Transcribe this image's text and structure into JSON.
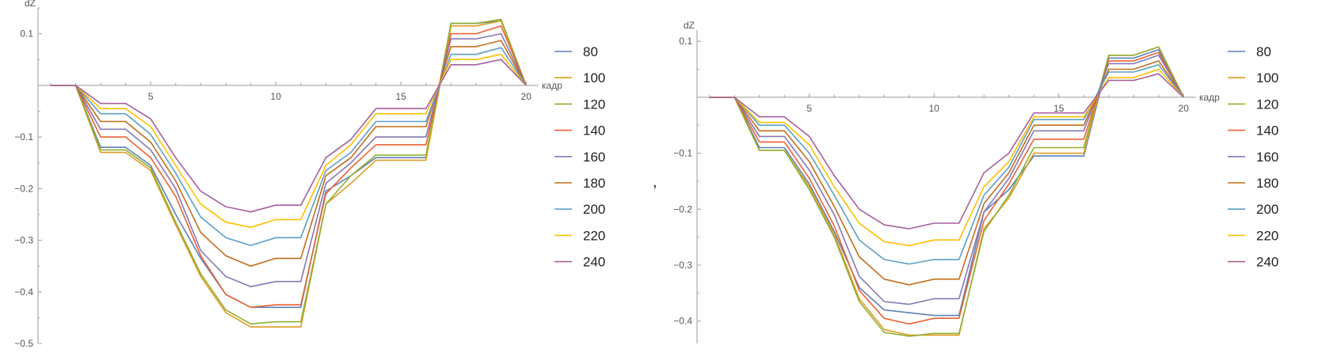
{
  "separator": ",",
  "chart_data": [
    {
      "type": "line",
      "xlabel": "кадр",
      "ylabel": "dZ",
      "xlim": [
        0.5,
        20.5
      ],
      "ylim": [
        -0.5,
        0.15
      ],
      "xticks": [
        5,
        10,
        15,
        20
      ],
      "yticks": [
        0.1,
        -0.1,
        -0.2,
        -0.3,
        -0.4,
        -0.5
      ],
      "x": [
        1,
        2,
        3,
        4,
        5,
        6,
        7,
        8,
        9,
        10,
        11,
        12,
        13,
        14,
        15,
        16,
        17,
        18,
        19,
        20
      ],
      "legend_position": "right",
      "series": [
        {
          "name": "80",
          "color": "#5e81b5",
          "values": [
            0,
            0,
            -0.12,
            -0.12,
            -0.155,
            -0.25,
            -0.335,
            -0.405,
            -0.43,
            -0.43,
            -0.43,
            -0.205,
            -0.175,
            -0.14,
            -0.14,
            -0.14,
            0.12,
            0.12,
            0.125,
            0
          ]
        },
        {
          "name": "100",
          "color": "#e19c24",
          "values": [
            0,
            0,
            -0.13,
            -0.13,
            -0.165,
            -0.27,
            -0.37,
            -0.44,
            -0.468,
            -0.468,
            -0.468,
            -0.23,
            -0.19,
            -0.145,
            -0.145,
            -0.145,
            0.115,
            0.115,
            0.125,
            0
          ]
        },
        {
          "name": "120",
          "color": "#8fb032",
          "values": [
            0,
            0,
            -0.125,
            -0.125,
            -0.16,
            -0.265,
            -0.365,
            -0.435,
            -0.462,
            -0.458,
            -0.458,
            -0.23,
            -0.175,
            -0.135,
            -0.135,
            -0.135,
            0.12,
            0.12,
            0.128,
            0
          ]
        },
        {
          "name": "140",
          "color": "#eb6235",
          "values": [
            0,
            0,
            -0.1,
            -0.1,
            -0.14,
            -0.215,
            -0.33,
            -0.405,
            -0.43,
            -0.425,
            -0.425,
            -0.21,
            -0.16,
            -0.115,
            -0.115,
            -0.115,
            0.1,
            0.1,
            0.115,
            0
          ]
        },
        {
          "name": "160",
          "color": "#8778b3",
          "values": [
            0,
            0,
            -0.085,
            -0.085,
            -0.125,
            -0.2,
            -0.32,
            -0.37,
            -0.39,
            -0.38,
            -0.38,
            -0.19,
            -0.15,
            -0.1,
            -0.1,
            -0.1,
            0.09,
            0.09,
            0.1,
            0
          ]
        },
        {
          "name": "180",
          "color": "#c56e1a",
          "values": [
            0,
            0,
            -0.07,
            -0.07,
            -0.11,
            -0.185,
            -0.285,
            -0.33,
            -0.35,
            -0.335,
            -0.335,
            -0.175,
            -0.14,
            -0.08,
            -0.08,
            -0.08,
            0.075,
            0.075,
            0.087,
            0
          ]
        },
        {
          "name": "200",
          "color": "#5d9ec7",
          "values": [
            0,
            0,
            -0.055,
            -0.055,
            -0.095,
            -0.17,
            -0.255,
            -0.295,
            -0.31,
            -0.295,
            -0.295,
            -0.165,
            -0.13,
            -0.07,
            -0.07,
            -0.07,
            0.06,
            0.06,
            0.073,
            0
          ]
        },
        {
          "name": "220",
          "color": "#ffbf00",
          "values": [
            0,
            0,
            -0.045,
            -0.045,
            -0.08,
            -0.155,
            -0.23,
            -0.265,
            -0.275,
            -0.26,
            -0.26,
            -0.155,
            -0.115,
            -0.055,
            -0.055,
            -0.055,
            0.05,
            0.05,
            0.06,
            0
          ]
        },
        {
          "name": "240",
          "color": "#a5609d",
          "values": [
            0,
            0,
            -0.035,
            -0.035,
            -0.065,
            -0.14,
            -0.205,
            -0.235,
            -0.245,
            -0.232,
            -0.232,
            -0.14,
            -0.105,
            -0.045,
            -0.045,
            -0.045,
            0.04,
            0.04,
            0.05,
            0
          ]
        }
      ]
    },
    {
      "type": "line",
      "xlabel": "кадр",
      "ylabel": "dZ",
      "xlim": [
        0.5,
        20.5
      ],
      "ylim": [
        -0.44,
        0.12
      ],
      "xticks": [
        5,
        10,
        15,
        20
      ],
      "yticks": [
        0.1,
        -0.1,
        -0.2,
        -0.3,
        -0.4
      ],
      "x": [
        1,
        2,
        3,
        4,
        5,
        6,
        7,
        8,
        9,
        10,
        11,
        12,
        13,
        14,
        15,
        16,
        17,
        18,
        19,
        20
      ],
      "legend_position": "right",
      "series": [
        {
          "name": "80",
          "color": "#5e81b5",
          "values": [
            0,
            0,
            -0.09,
            -0.09,
            -0.155,
            -0.24,
            -0.34,
            -0.38,
            -0.385,
            -0.39,
            -0.39,
            -0.205,
            -0.165,
            -0.105,
            -0.105,
            -0.105,
            0.07,
            0.07,
            0.085,
            0
          ]
        },
        {
          "name": "100",
          "color": "#e19c24",
          "values": [
            0,
            0,
            -0.095,
            -0.095,
            -0.16,
            -0.245,
            -0.36,
            -0.415,
            -0.425,
            -0.425,
            -0.425,
            -0.235,
            -0.18,
            -0.1,
            -0.1,
            -0.1,
            0.075,
            0.075,
            0.09,
            0
          ]
        },
        {
          "name": "120",
          "color": "#8fb032",
          "values": [
            0,
            0,
            -0.095,
            -0.095,
            -0.165,
            -0.25,
            -0.365,
            -0.42,
            -0.427,
            -0.422,
            -0.422,
            -0.24,
            -0.175,
            -0.09,
            -0.09,
            -0.09,
            0.075,
            0.075,
            0.09,
            0
          ]
        },
        {
          "name": "140",
          "color": "#eb6235",
          "values": [
            0,
            0,
            -0.08,
            -0.08,
            -0.145,
            -0.23,
            -0.345,
            -0.395,
            -0.405,
            -0.395,
            -0.395,
            -0.22,
            -0.155,
            -0.075,
            -0.075,
            -0.075,
            0.065,
            0.065,
            0.08,
            0
          ]
        },
        {
          "name": "160",
          "color": "#8778b3",
          "values": [
            0,
            0,
            -0.07,
            -0.07,
            -0.13,
            -0.21,
            -0.32,
            -0.365,
            -0.37,
            -0.36,
            -0.36,
            -0.205,
            -0.145,
            -0.06,
            -0.06,
            -0.06,
            0.06,
            0.06,
            0.075,
            0
          ]
        },
        {
          "name": "180",
          "color": "#c56e1a",
          "values": [
            0,
            0,
            -0.06,
            -0.06,
            -0.115,
            -0.195,
            -0.285,
            -0.325,
            -0.335,
            -0.325,
            -0.325,
            -0.19,
            -0.135,
            -0.05,
            -0.05,
            -0.05,
            0.05,
            0.05,
            0.065,
            0
          ]
        },
        {
          "name": "200",
          "color": "#5d9ec7",
          "values": [
            0,
            0,
            -0.05,
            -0.05,
            -0.1,
            -0.175,
            -0.255,
            -0.29,
            -0.298,
            -0.29,
            -0.29,
            -0.175,
            -0.125,
            -0.04,
            -0.04,
            -0.04,
            0.045,
            0.045,
            0.058,
            0
          ]
        },
        {
          "name": "220",
          "color": "#ffbf00",
          "values": [
            0,
            0,
            -0.045,
            -0.045,
            -0.085,
            -0.16,
            -0.225,
            -0.258,
            -0.265,
            -0.255,
            -0.255,
            -0.16,
            -0.115,
            -0.035,
            -0.035,
            -0.035,
            0.035,
            0.035,
            0.05,
            0
          ]
        },
        {
          "name": "240",
          "color": "#a5609d",
          "values": [
            0,
            0,
            -0.035,
            -0.035,
            -0.07,
            -0.14,
            -0.2,
            -0.228,
            -0.235,
            -0.225,
            -0.225,
            -0.135,
            -0.1,
            -0.028,
            -0.028,
            -0.028,
            0.03,
            0.03,
            0.042,
            0
          ]
        }
      ]
    }
  ]
}
